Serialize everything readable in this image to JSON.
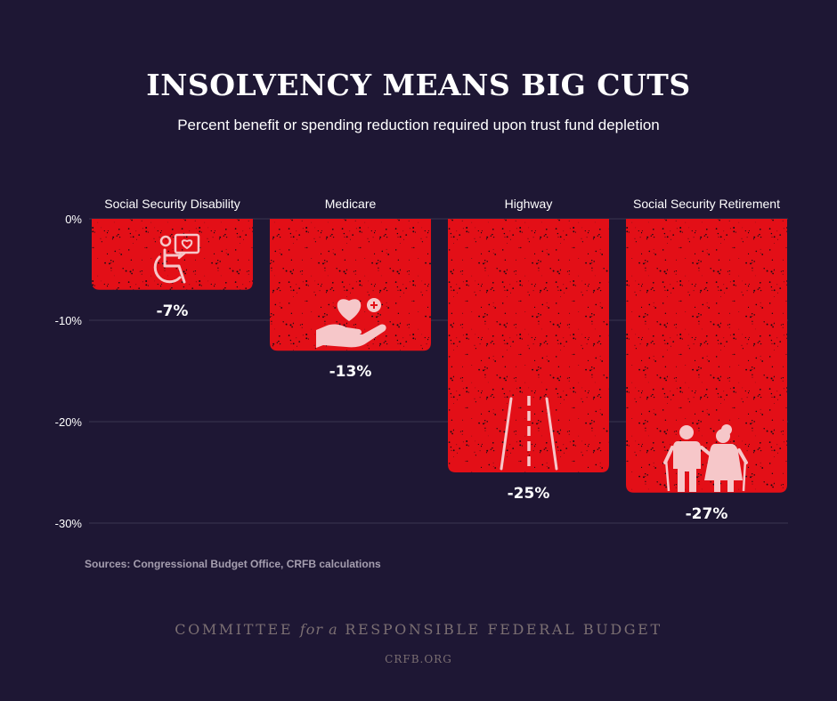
{
  "title": "INSOLVENCY MEANS BIG CUTS",
  "subtitle": "Percent benefit or spending reduction required upon trust fund depletion",
  "source": "Sources: Congressional Budget Office, CRFB calculations",
  "footer": {
    "org_part1": "COMMITTEE",
    "org_part2": "for a",
    "org_part3": "RESPONSIBLE FEDERAL BUDGET",
    "url": "CRFB.ORG"
  },
  "colors": {
    "background": "#1e1734",
    "bar": "#e30f17",
    "icon": "#f6c7c9",
    "gridline": "#3b3450"
  },
  "chart_data": {
    "type": "bar",
    "categories": [
      "Social Security Disability",
      "Medicare",
      "Highway",
      "Social Security Retirement"
    ],
    "values": [
      -7,
      -13,
      -25,
      -27
    ],
    "value_labels": [
      "-7%",
      "-13%",
      "-25%",
      "-27%"
    ],
    "ylim": [
      -30,
      0
    ],
    "yticks": [
      0,
      -10,
      -20,
      -30
    ],
    "ytick_labels": [
      "0%",
      "-10%",
      "-20%",
      "-30%"
    ],
    "category_axis_position": "top",
    "grid": true,
    "icons": [
      "wheelchair-heart-icon",
      "heart-hand-icon",
      "highway-road-icon",
      "elderly-couple-icon"
    ]
  }
}
